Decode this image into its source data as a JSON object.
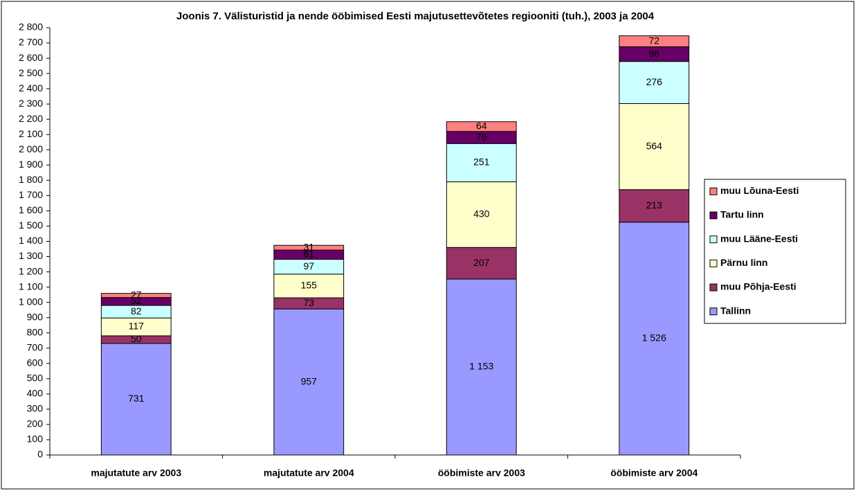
{
  "chart_data": {
    "type": "stacked_bar",
    "title": "Joonis 7. Välisturistid ja nende ööbimised Eesti majutusettevõtetes regiooniti (tuh.), 2003 ja 2004",
    "categories": [
      "majutatute arv 2003",
      "majutatute arv 2004",
      "ööbimiste arv 2003",
      "ööbimiste arv 2004"
    ],
    "series": [
      {
        "name": "Tallinn",
        "color": "#9999ff",
        "values": [
          731,
          957,
          1153,
          1526
        ],
        "value_labels": [
          "731",
          "957",
          "1 153",
          "1 526"
        ]
      },
      {
        "name": "muu Põhja-Eesti",
        "color": "#993366",
        "values": [
          50,
          73,
          207,
          213
        ]
      },
      {
        "name": "Pärnu linn",
        "color": "#ffffcc",
        "values": [
          117,
          155,
          430,
          564
        ]
      },
      {
        "name": "muu Lääne-Eesti",
        "color": "#ccffff",
        "values": [
          82,
          97,
          251,
          276
        ]
      },
      {
        "name": "Tartu linn",
        "color": "#660066",
        "values": [
          52,
          61,
          79,
          96
        ]
      },
      {
        "name": "muu Lõuna-Eesti",
        "color": "#ff8080",
        "values": [
          27,
          31,
          64,
          72
        ]
      }
    ],
    "ylim": [
      0,
      2800
    ],
    "yticks": [
      0,
      100,
      200,
      300,
      400,
      500,
      600,
      700,
      800,
      900,
      {
        "value": 1000,
        "label": "1 000"
      },
      {
        "value": 1100,
        "label": "1 100"
      },
      {
        "value": 1200,
        "label": "1 200"
      },
      {
        "value": 1300,
        "label": "1 300"
      },
      {
        "value": 1400,
        "label": "1 400"
      },
      {
        "value": 1500,
        "label": "1 500"
      },
      {
        "value": 1600,
        "label": "1 600"
      },
      {
        "value": 1700,
        "label": "1 700"
      },
      {
        "value": 1800,
        "label": "1 800"
      },
      {
        "value": 1900,
        "label": "1 900"
      },
      {
        "value": 2000,
        "label": "2 000"
      },
      {
        "value": 2100,
        "label": "2 100"
      },
      {
        "value": 2200,
        "label": "2 200"
      },
      {
        "value": 2300,
        "label": "2 300"
      },
      {
        "value": 2400,
        "label": "2 400"
      },
      {
        "value": 2500,
        "label": "2 500"
      },
      {
        "value": 2600,
        "label": "2 600"
      },
      {
        "value": 2700,
        "label": "2 700"
      },
      {
        "value": 2800,
        "label": "2 800"
      }
    ],
    "legend": "right",
    "grid": false
  }
}
